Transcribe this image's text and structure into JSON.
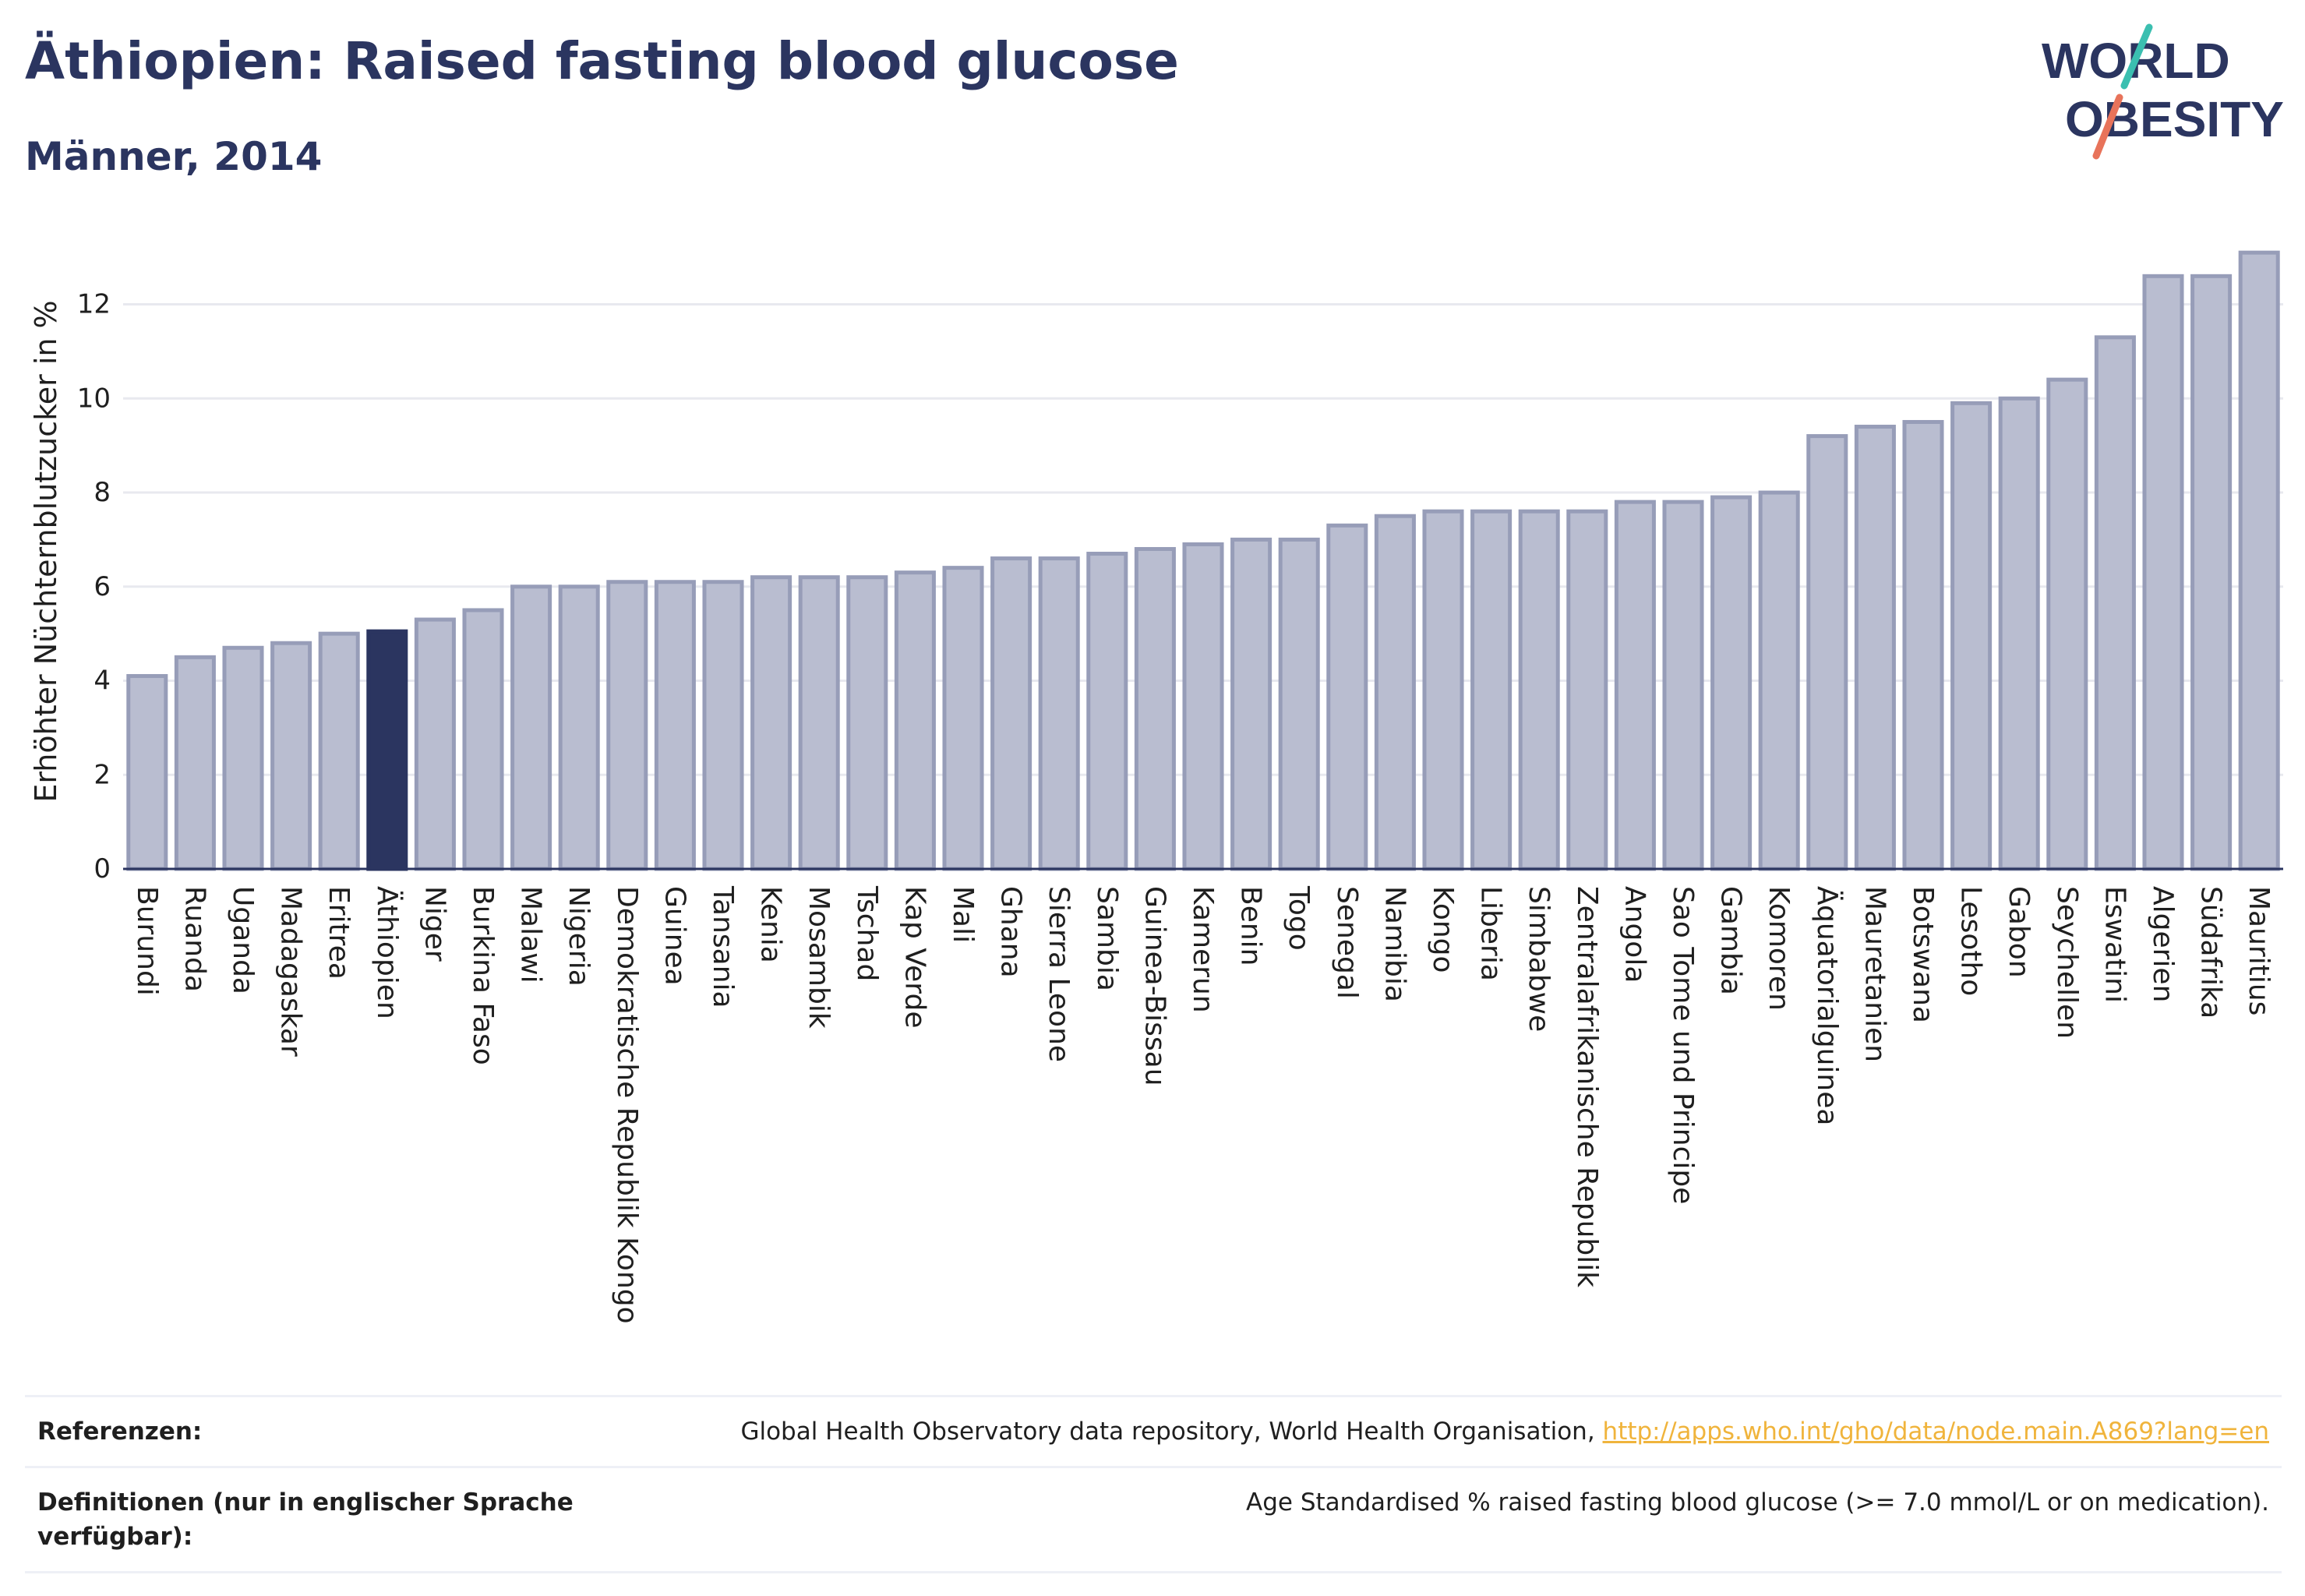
{
  "header": {
    "title": "Äthiopien: Raised fasting blood glucose",
    "subtitle": "Männer, 2014"
  },
  "logo": {
    "line1": "WORLD",
    "line2": "OBESITY"
  },
  "colors": {
    "bar": "#b9bdd0",
    "bar_border": "#979db8",
    "highlight": "#2b3560",
    "grid": "#e8e9ef",
    "accent_teal": "#3bbfb0",
    "accent_red": "#e8735a"
  },
  "chart_data": {
    "type": "bar",
    "ylabel": "Erhöhter Nüchternblutzucker in %",
    "xlabel": "",
    "ylim": [
      0,
      13.5
    ],
    "yticks": [
      0,
      2,
      4,
      6,
      8,
      10,
      12
    ],
    "grid": true,
    "highlight": "Äthiopien",
    "categories": [
      "Burundi",
      "Ruanda",
      "Uganda",
      "Madagaskar",
      "Eritrea",
      "Äthiopien",
      "Niger",
      "Burkina Faso",
      "Malawi",
      "Nigeria",
      "Demokratische Republik Kongo",
      "Guinea",
      "Tansania",
      "Kenia",
      "Mosambik",
      "Tschad",
      "Kap Verde",
      "Mali",
      "Ghana",
      "Sierra Leone",
      "Sambia",
      "Guinea-Bissau",
      "Kamerun",
      "Benin",
      "Togo",
      "Senegal",
      "Namibia",
      "Kongo",
      "Liberia",
      "Simbabwe",
      "Zentralafrikanische Republik",
      "Angola",
      "Sao Tome und Principe",
      "Gambia",
      "Komoren",
      "Äquatorialguinea",
      "Mauretanien",
      "Botswana",
      "Lesotho",
      "Gabon",
      "Seychellen",
      "Eswatini",
      "Algerien",
      "Südafrika",
      "Mauritius"
    ],
    "values": [
      4.1,
      4.5,
      4.7,
      4.8,
      5.0,
      5.05,
      5.3,
      5.5,
      6.0,
      6.0,
      6.1,
      6.1,
      6.1,
      6.2,
      6.2,
      6.2,
      6.3,
      6.4,
      6.6,
      6.6,
      6.7,
      6.8,
      6.9,
      7.0,
      7.0,
      7.3,
      7.5,
      7.6,
      7.6,
      7.6,
      7.6,
      7.8,
      7.8,
      7.9,
      8.0,
      9.2,
      9.4,
      9.5,
      9.9,
      10.0,
      10.4,
      11.3,
      12.6,
      12.6,
      13.1
    ]
  },
  "references": {
    "refs_label": "Referenzen:",
    "refs_text": "Global Health Observatory data repository, World Health Organisation, ",
    "refs_link": "http://apps.who.int/gho/data/node.main.A869?lang=en",
    "defs_label": "Definitionen (nur in englischer Sprache verfügbar):",
    "defs_text": "Age Standardised % raised fasting blood glucose (>= 7.0 mmol/L or on medication)."
  }
}
